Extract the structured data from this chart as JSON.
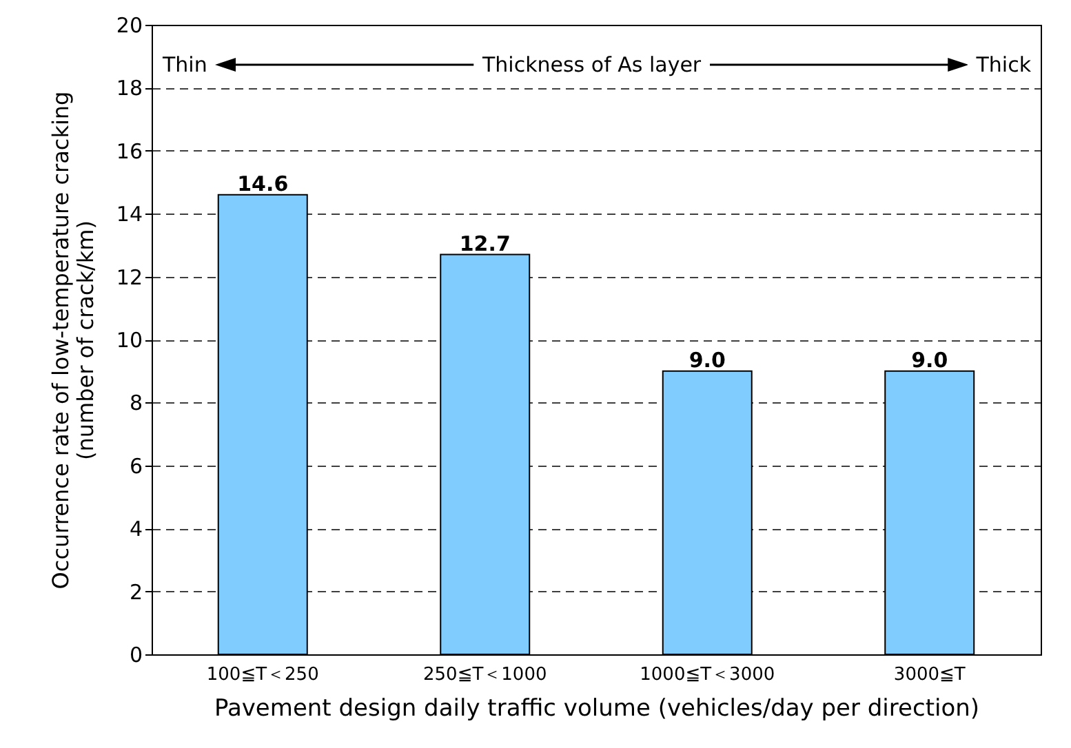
{
  "chart_data": {
    "type": "bar",
    "categories": [
      "100≦T＜250",
      "250≦T＜1000",
      "1000≦T＜3000",
      "3000≦T"
    ],
    "values": [
      14.6,
      12.7,
      9.0,
      9.0
    ],
    "value_labels": [
      "14.6",
      "12.7",
      "9.0",
      "9.0"
    ],
    "color": "#80ccff",
    "xlabel": "Pavement design daily traffic volume (vehicles/day per direction)",
    "ylabel": "Occurrence rate of low-temperature cracking\n(number of crack/km)",
    "ylim": [
      0,
      20
    ],
    "yticks": [
      0,
      2,
      4,
      6,
      8,
      10,
      12,
      14,
      16,
      18,
      20
    ],
    "grid": "y",
    "line_style": "dashed",
    "annotations": [
      "Thin",
      "Thickness of As layer",
      "Thick"
    ]
  }
}
